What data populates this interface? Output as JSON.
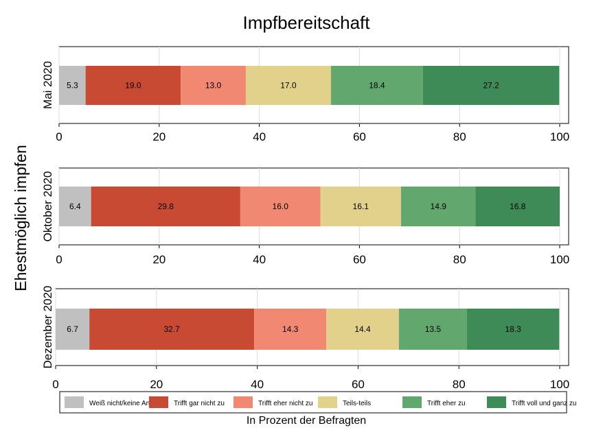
{
  "chart_data": {
    "type": "stacked-horizontal-bar",
    "title": "Impfbereitschaft",
    "ylabel": "Ehestmöglich impfen",
    "xlabel": "In Prozent der Befragten",
    "xlim": [
      0,
      100
    ],
    "xticks": [
      "0",
      "20",
      "40",
      "60",
      "80",
      "100"
    ],
    "grid": true,
    "legend_position": "bottom",
    "categories": [
      {
        "key": "weiss_nicht",
        "label": "Weiß nicht/keine Angabe",
        "color": "#c0c0c0"
      },
      {
        "key": "gar_nicht",
        "label": "Trifft gar nicht zu",
        "color": "#c94a33"
      },
      {
        "key": "eher_nicht",
        "label": "Trifft eher nicht zu",
        "color": "#f08872"
      },
      {
        "key": "teils",
        "label": "Teils-teils",
        "color": "#e2d18a"
      },
      {
        "key": "eher_zu",
        "label": "Trifft eher zu",
        "color": "#62a76d"
      },
      {
        "key": "voll",
        "label": "Trifft voll und ganz zu",
        "color": "#3e8b58"
      }
    ],
    "panels": [
      {
        "label": "Mai 2020",
        "values": [
          5.3,
          19.0,
          13.0,
          17.0,
          18.4,
          27.2
        ],
        "value_labels": [
          "5.3",
          "19.0",
          "13.0",
          "17.0",
          "18.4",
          "27.2"
        ]
      },
      {
        "label": "Oktober 2020",
        "values": [
          6.4,
          29.8,
          16.0,
          16.1,
          14.9,
          16.8
        ],
        "value_labels": [
          "6.4",
          "29.8",
          "16.0",
          "16.1",
          "14.9",
          "16.8"
        ]
      },
      {
        "label": "Dezember 2020",
        "values": [
          6.7,
          32.7,
          14.3,
          14.4,
          13.5,
          18.3
        ],
        "value_labels": [
          "6.7",
          "32.7",
          "14.3",
          "14.4",
          "13.5",
          "18.3"
        ]
      }
    ]
  }
}
